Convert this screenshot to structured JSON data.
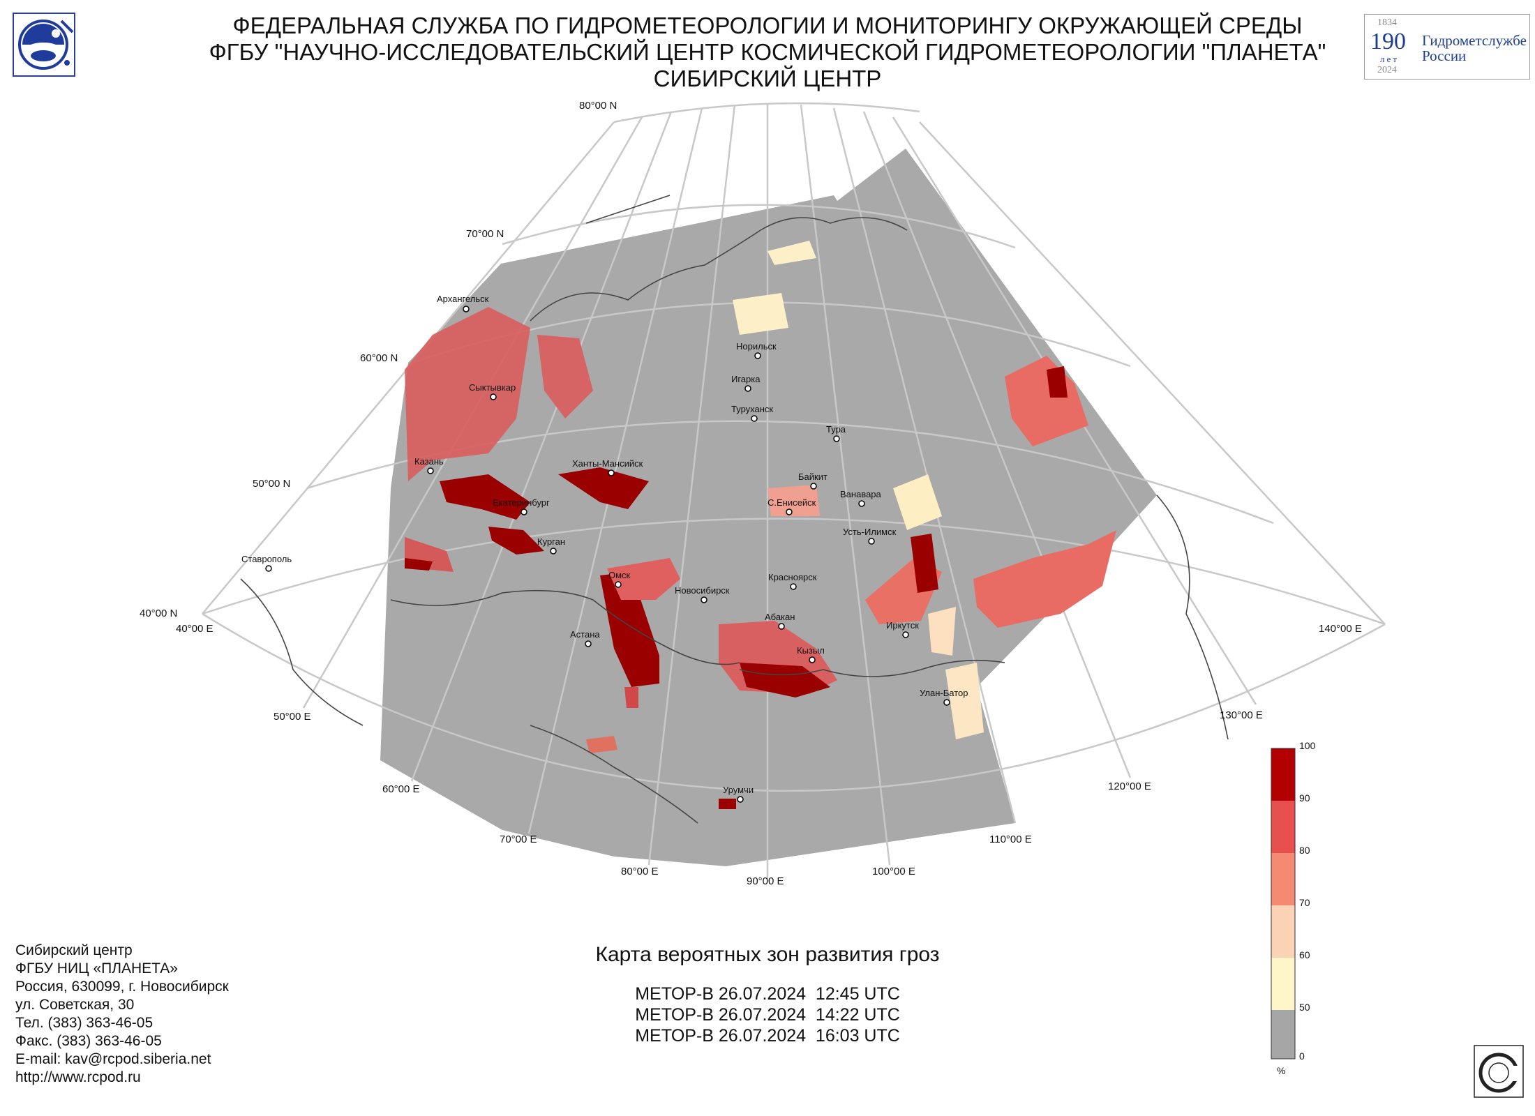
{
  "header": {
    "line1": "ФЕДЕРАЛЬНАЯ СЛУЖБА ПО ГИДРОМЕТЕОРОЛОГИИ И МОНИТОРИНГУ ОКРУЖАЮЩЕЙ СРЕДЫ",
    "line2": "ФГБУ \"НАУЧНО-ИССЛЕДОВАТЕЛЬСКИЙ ЦЕНТР КОСМИЧЕСКОЙ ГИДРОМЕТЕОРОЛОГИИ \"ПЛАНЕТА\"",
    "line3": "СИБИРСКИЙ ЦЕНТР"
  },
  "anniversary_logo": {
    "year_start": "1834",
    "number": "190",
    "unit": "лет",
    "text_line1": "Гидрометслужбе",
    "text_line2": "России",
    "year_end": "2024"
  },
  "map": {
    "latitude_labels": [
      "80°00 N",
      "70°00 N",
      "60°00 N",
      "50°00 N",
      "40°00 N"
    ],
    "longitude_labels": [
      "40°00 E",
      "50°00 E",
      "60°00 E",
      "70°00 E",
      "80°00 E",
      "90°00 E",
      "100°00 E",
      "110°00 E",
      "120°00 E",
      "130°00 E",
      "140°00 E"
    ],
    "cities": [
      "Архангельск",
      "Сыктывкар",
      "Казань",
      "Ханты-Мансийск",
      "Екатеринбург",
      "Курган",
      "Ставрополь",
      "Омск",
      "Новосибирск",
      "Астана",
      "Норильск",
      "Игарка",
      "Туруханск",
      "Тура",
      "Байкит",
      "С.Енисейск",
      "Ванавара",
      "Усть-Илимск",
      "Красноярск",
      "Абакан",
      "Кызыл",
      "Иркутск",
      "Улан-Батор",
      "Урумчи"
    ],
    "colors": {
      "no_data_area": "#a9a9a9",
      "grid": "#c8c8c8",
      "border": "#444444"
    }
  },
  "colorbar": {
    "ticks": [
      "100",
      "90",
      "80",
      "70",
      "60",
      "50",
      "0"
    ],
    "unit": "%",
    "colors": [
      "#b30000",
      "#e85050",
      "#f58a72",
      "#fcd2b4",
      "#fef6c8",
      "#a6a6a6"
    ]
  },
  "legend": {
    "title": "Карта вероятных зон развития гроз",
    "passes": [
      "МЕТОР-В 26.07.2024  12:45 UTC",
      "МЕТОР-В 26.07.2024  14:22 UTC",
      "МЕТОР-В 26.07.2024  16:03 UTC"
    ]
  },
  "address": {
    "lines": [
      "Сибирский центр",
      "ФГБУ НИЦ «ПЛАНЕТА»",
      "Россия, 630099, г. Новосибирск",
      "ул. Советская, 30",
      "Тел. (383) 363-46-05",
      "Факс. (383) 363-46-05",
      "E-mail: kav@rcpod.siberia.net",
      "http://www.rcpod.ru"
    ]
  }
}
